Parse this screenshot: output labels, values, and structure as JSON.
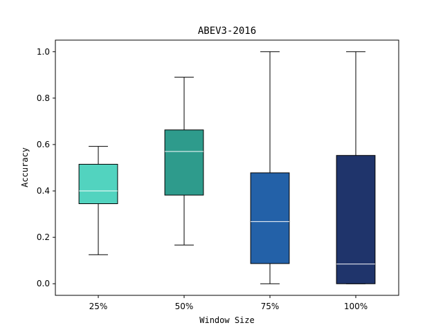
{
  "chart_data": {
    "type": "box",
    "title": "ABEV3-2016",
    "xlabel": "Window Size",
    "ylabel": "Accuracy",
    "categories": [
      "25%",
      "50%",
      "75%",
      "100%"
    ],
    "ylim": [
      -0.05,
      1.05
    ],
    "yticks": [
      0.0,
      0.2,
      0.4,
      0.6,
      0.8,
      1.0
    ],
    "ytick_labels": [
      "0.0",
      "0.2",
      "0.4",
      "0.6",
      "0.8",
      "1.0"
    ],
    "grid": false,
    "legend": "none",
    "boxes": [
      {
        "category": "25%",
        "whisker_low": 0.125,
        "q1": 0.345,
        "median": 0.4,
        "q3": 0.515,
        "whisker_high": 0.592,
        "color": "#52d3bf"
      },
      {
        "category": "50%",
        "whisker_low": 0.167,
        "q1": 0.382,
        "median": 0.57,
        "q3": 0.663,
        "whisker_high": 0.89,
        "color": "#2e9b8c"
      },
      {
        "category": "75%",
        "whisker_low": 0.0,
        "q1": 0.087,
        "median": 0.268,
        "q3": 0.478,
        "whisker_high": 1.0,
        "color": "#2361a8"
      },
      {
        "category": "100%",
        "whisker_low": 0.0,
        "q1": 0.0,
        "median": 0.085,
        "q3": 0.553,
        "whisker_high": 1.0,
        "color": "#1f346b"
      }
    ],
    "median_color": "#ffffff",
    "line_color": "#000000"
  }
}
